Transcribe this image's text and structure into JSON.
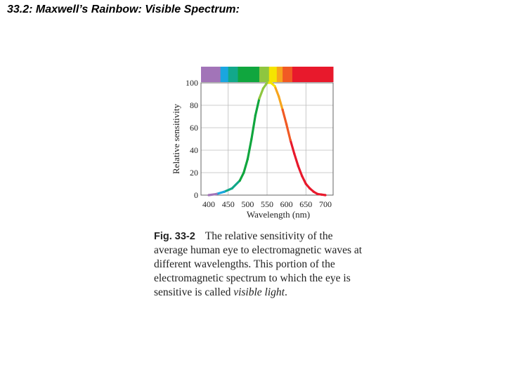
{
  "slide": {
    "title": "33.2: Maxwell’s Rainbow: Visible Spectrum:"
  },
  "caption": {
    "figure_label": "Fig. 33-2",
    "text": "The relative sensitivity of the average human eye to electromagnetic waves at different wavelengths. This portion of the electromagnetic spectrum to which the eye is sensitive is called",
    "emphasis": "visible light",
    "end": "."
  },
  "chart_data": {
    "type": "line",
    "title": "",
    "xlabel": "Wavelength (nm)",
    "ylabel": "Relative sensitivity",
    "xlim": [
      380,
      720
    ],
    "ylim": [
      0,
      100
    ],
    "x_ticks": [
      400,
      450,
      500,
      550,
      600,
      650,
      700
    ],
    "y_ticks": [
      0,
      20,
      40,
      60,
      80,
      100
    ],
    "grid": true,
    "legend": "none",
    "spectrum_bands": [
      {
        "from": 380,
        "to": 430,
        "color": "#a274b8"
      },
      {
        "from": 430,
        "to": 450,
        "color": "#1aa6e0"
      },
      {
        "from": 450,
        "to": 475,
        "color": "#12a88a"
      },
      {
        "from": 475,
        "to": 530,
        "color": "#10a63e"
      },
      {
        "from": 530,
        "to": 555,
        "color": "#8ec63f"
      },
      {
        "from": 555,
        "to": 575,
        "color": "#f5e400"
      },
      {
        "from": 575,
        "to": 590,
        "color": "#f7a51d"
      },
      {
        "from": 590,
        "to": 615,
        "color": "#f15a24"
      },
      {
        "from": 615,
        "to": 720,
        "color": "#e8192c"
      }
    ],
    "series": [
      {
        "x": [
          400,
          420,
          440,
          460,
          480,
          490,
          500,
          510,
          520,
          530,
          540,
          550,
          560,
          570,
          580,
          590,
          600,
          610,
          620,
          630,
          640,
          650,
          660,
          670,
          680,
          690,
          700
        ],
        "y": [
          0,
          1,
          3,
          6,
          13,
          20,
          32,
          50,
          71,
          86,
          95,
          100,
          100,
          97,
          88,
          76,
          63,
          49,
          37,
          26,
          17,
          10,
          6,
          3,
          1,
          0.5,
          0
        ]
      }
    ]
  }
}
